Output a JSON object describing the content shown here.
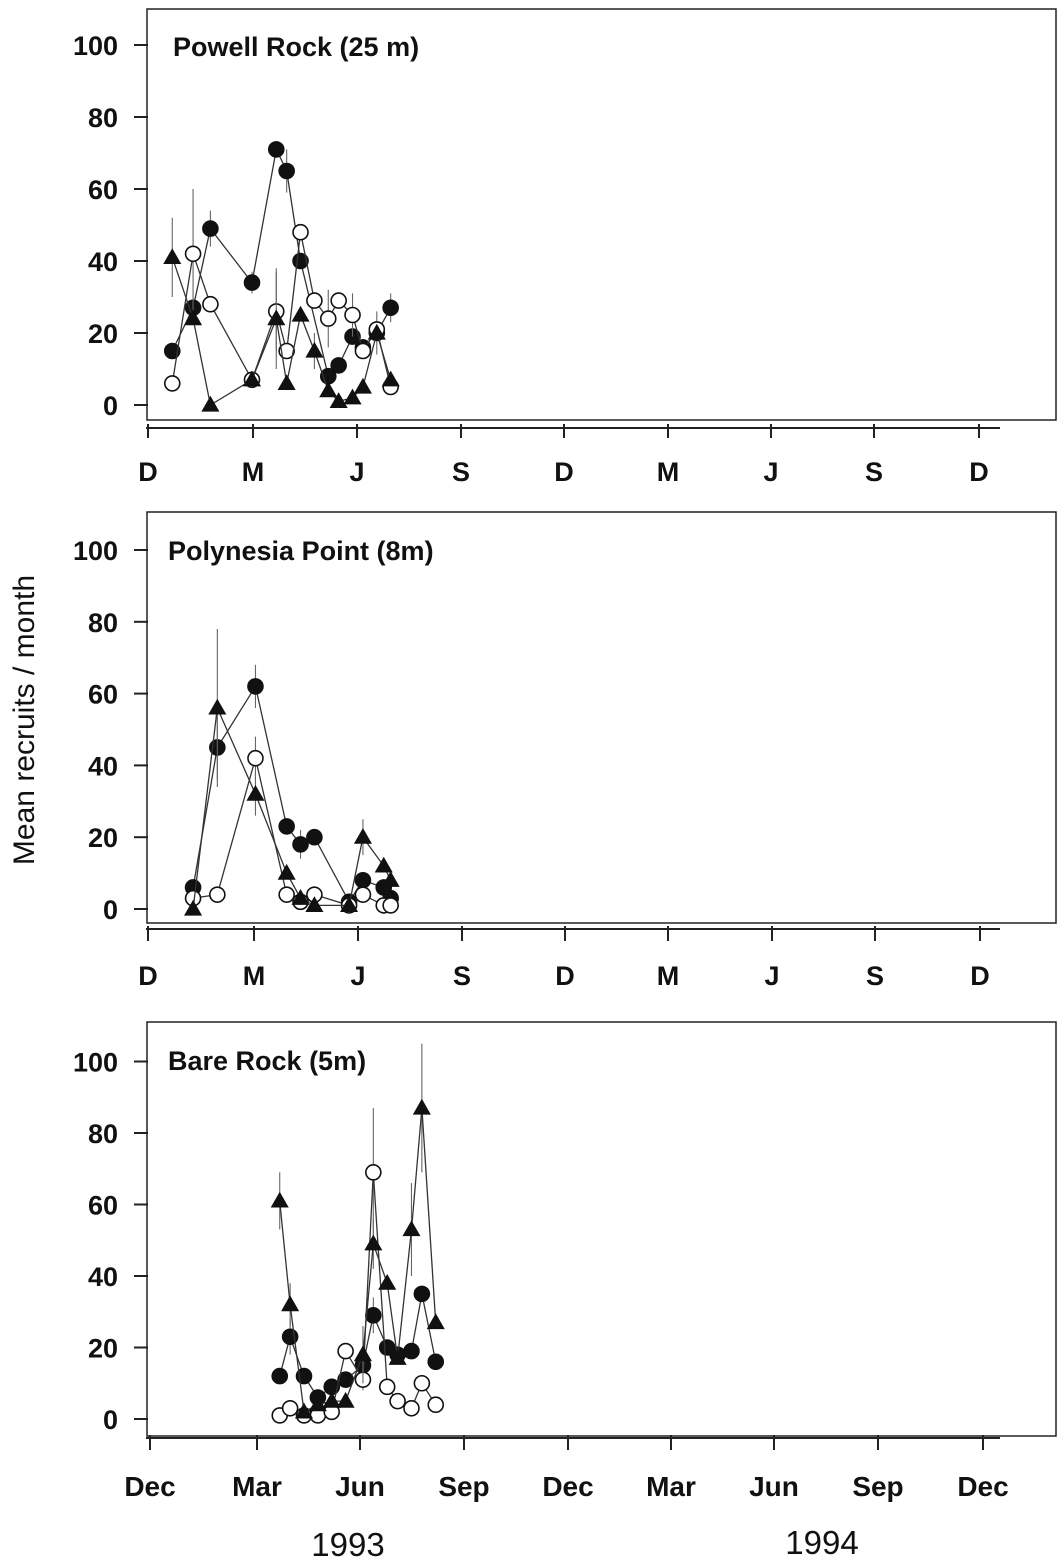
{
  "figure": {
    "ylabel": "Mean recruits / month",
    "year_labels": [
      "1993",
      "1994"
    ],
    "bottom_month_labels": [
      "Dec",
      "Mar",
      "Jun",
      "Sep",
      "Dec",
      "Mar",
      "Jun",
      "Sep",
      "Dec"
    ],
    "short_month_labels": [
      "D",
      "M",
      "J",
      "S",
      "D",
      "M",
      "J",
      "S",
      "D"
    ],
    "y_ticks": [
      "0",
      "20",
      "40",
      "60",
      "80",
      "100"
    ]
  },
  "chart_data": [
    {
      "type": "line",
      "title": "Powell Rock (25 m)",
      "xlabel": "",
      "ylabel": "Mean recruits / month",
      "ylim": [
        0,
        100
      ],
      "x_unit": "months since Dec 1992",
      "series": [
        {
          "marker": "filled-circle",
          "color": "#111111",
          "points": [
            [
              0.7,
              15,
              0
            ],
            [
              1.3,
              27,
              0
            ],
            [
              1.8,
              49,
              5
            ],
            [
              3.0,
              34,
              3
            ],
            [
              3.7,
              71,
              0
            ],
            [
              4.0,
              65,
              6
            ],
            [
              4.4,
              40,
              0
            ],
            [
              5.2,
              8,
              0
            ],
            [
              5.5,
              11,
              0
            ],
            [
              5.9,
              19,
              0
            ],
            [
              6.2,
              16,
              0
            ],
            [
              6.6,
              20,
              6
            ],
            [
              7.0,
              27,
              4
            ]
          ]
        },
        {
          "marker": "open-circle",
          "color": "#ffffff",
          "points": [
            [
              0.7,
              6,
              0
            ],
            [
              1.3,
              42,
              18
            ],
            [
              1.8,
              28,
              0
            ],
            [
              3.0,
              7,
              0
            ],
            [
              3.7,
              26,
              11
            ],
            [
              4.0,
              15,
              0
            ],
            [
              4.4,
              48,
              0
            ],
            [
              4.8,
              29,
              0
            ],
            [
              5.2,
              24,
              8
            ],
            [
              5.5,
              29,
              0
            ],
            [
              5.9,
              25,
              6
            ],
            [
              6.2,
              15,
              0
            ],
            [
              6.6,
              21,
              0
            ],
            [
              7.0,
              5,
              0
            ]
          ]
        },
        {
          "marker": "filled-triangle",
          "color": "#111111",
          "points": [
            [
              0.7,
              41,
              11
            ],
            [
              1.3,
              24,
              0
            ],
            [
              1.8,
              0,
              0
            ],
            [
              3.0,
              7,
              0
            ],
            [
              3.7,
              24,
              14
            ],
            [
              4.0,
              6,
              0
            ],
            [
              4.4,
              25,
              0
            ],
            [
              4.8,
              15,
              5
            ],
            [
              5.2,
              4,
              0
            ],
            [
              5.5,
              1,
              0
            ],
            [
              5.9,
              2,
              0
            ],
            [
              6.2,
              5,
              0
            ],
            [
              6.6,
              20,
              0
            ],
            [
              7.0,
              7,
              0
            ]
          ]
        }
      ]
    },
    {
      "type": "line",
      "title": "Polynesia Point (8m)",
      "xlabel": "",
      "ylabel": "Mean recruits / month",
      "ylim": [
        0,
        100
      ],
      "x_unit": "months since Dec 1992",
      "series": [
        {
          "marker": "filled-circle",
          "color": "#111111",
          "points": [
            [
              1.3,
              6,
              0
            ],
            [
              2.0,
              45,
              9
            ],
            [
              3.1,
              62,
              6
            ],
            [
              4.0,
              23,
              0
            ],
            [
              4.4,
              18,
              4
            ],
            [
              4.8,
              20,
              0
            ],
            [
              5.8,
              2,
              0
            ],
            [
              6.2,
              8,
              0
            ],
            [
              6.8,
              6,
              0
            ],
            [
              7.0,
              3,
              0
            ]
          ]
        },
        {
          "marker": "open-circle",
          "color": "#ffffff",
          "points": [
            [
              1.3,
              3,
              0
            ],
            [
              2.0,
              4,
              0
            ],
            [
              3.1,
              42,
              6
            ],
            [
              4.0,
              4,
              0
            ],
            [
              4.4,
              2,
              0
            ],
            [
              4.8,
              4,
              0
            ],
            [
              5.8,
              1,
              0
            ],
            [
              6.2,
              4,
              0
            ],
            [
              6.8,
              1,
              0
            ],
            [
              7.0,
              1,
              0
            ]
          ]
        },
        {
          "marker": "filled-triangle",
          "color": "#111111",
          "points": [
            [
              1.3,
              0,
              0
            ],
            [
              2.0,
              56,
              22
            ],
            [
              3.1,
              32,
              6
            ],
            [
              4.0,
              10,
              0
            ],
            [
              4.4,
              3,
              0
            ],
            [
              4.8,
              1,
              0
            ],
            [
              5.8,
              1,
              0
            ],
            [
              6.2,
              20,
              5
            ],
            [
              6.8,
              12,
              0
            ],
            [
              7.0,
              8,
              0
            ]
          ]
        }
      ]
    },
    {
      "type": "line",
      "title": "Bare Rock (5m)",
      "xlabel": "",
      "ylabel": "Mean recruits / month",
      "ylim": [
        0,
        100
      ],
      "x_unit": "months since Dec 1992",
      "series": [
        {
          "marker": "filled-circle",
          "color": "#111111",
          "points": [
            [
              3.8,
              12,
              0
            ],
            [
              4.1,
              23,
              5
            ],
            [
              4.5,
              12,
              0
            ],
            [
              4.9,
              6,
              0
            ],
            [
              5.3,
              9,
              0
            ],
            [
              5.7,
              11,
              0
            ],
            [
              6.2,
              15,
              0
            ],
            [
              6.5,
              29,
              5
            ],
            [
              6.9,
              20,
              0
            ],
            [
              7.2,
              18,
              0
            ],
            [
              7.6,
              19,
              0
            ],
            [
              7.9,
              35,
              0
            ],
            [
              8.3,
              16,
              0
            ]
          ]
        },
        {
          "marker": "open-circle",
          "color": "#ffffff",
          "points": [
            [
              3.8,
              1,
              0
            ],
            [
              4.1,
              3,
              0
            ],
            [
              4.5,
              1,
              0
            ],
            [
              4.9,
              1,
              0
            ],
            [
              5.3,
              2,
              0
            ],
            [
              5.7,
              19,
              0
            ],
            [
              6.2,
              11,
              3
            ],
            [
              6.5,
              69,
              18
            ],
            [
              6.9,
              9,
              0
            ],
            [
              7.2,
              5,
              0
            ],
            [
              7.6,
              3,
              0
            ],
            [
              7.9,
              10,
              0
            ],
            [
              8.3,
              4,
              0
            ]
          ]
        },
        {
          "marker": "filled-triangle",
          "color": "#111111",
          "points": [
            [
              3.8,
              61,
              8
            ],
            [
              4.1,
              32,
              6
            ],
            [
              4.5,
              2,
              0
            ],
            [
              4.9,
              4,
              0
            ],
            [
              5.3,
              5,
              0
            ],
            [
              5.7,
              5,
              0
            ],
            [
              6.2,
              18,
              8
            ],
            [
              6.5,
              49,
              7
            ],
            [
              6.9,
              38,
              0
            ],
            [
              7.2,
              17,
              0
            ],
            [
              7.6,
              53,
              13
            ],
            [
              7.9,
              87,
              18
            ],
            [
              8.3,
              27,
              0
            ]
          ]
        }
      ]
    }
  ]
}
